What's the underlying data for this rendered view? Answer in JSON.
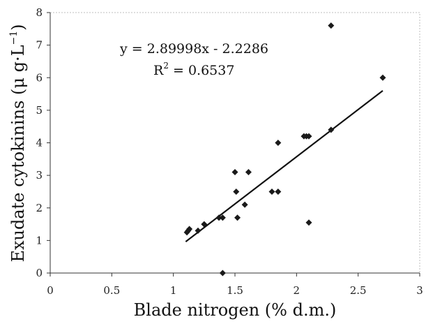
{
  "chart_data": {
    "type": "scatter",
    "xlabel": "Blade nitrogen (% d.m.)",
    "ylabel_main": "Exudate cytokinins (μ g·L",
    "ylabel_sup": "−1",
    "ylabel_close": ")",
    "xlim": [
      0,
      3
    ],
    "ylim": [
      0,
      8
    ],
    "x_ticks": [
      "0",
      "0.5",
      "1",
      "1.5",
      "2",
      "2.5",
      "3"
    ],
    "y_ticks": [
      "0",
      "1",
      "2",
      "3",
      "4",
      "5",
      "6",
      "7",
      "8"
    ],
    "grid": false,
    "points": [
      {
        "x": 1.11,
        "y": 1.25
      },
      {
        "x": 1.12,
        "y": 1.3
      },
      {
        "x": 1.13,
        "y": 1.35
      },
      {
        "x": 1.2,
        "y": 1.3
      },
      {
        "x": 1.25,
        "y": 1.5
      },
      {
        "x": 1.37,
        "y": 1.7
      },
      {
        "x": 1.4,
        "y": 1.7
      },
      {
        "x": 1.4,
        "y": 0.0
      },
      {
        "x": 1.5,
        "y": 3.1
      },
      {
        "x": 1.51,
        "y": 2.5
      },
      {
        "x": 1.52,
        "y": 1.7
      },
      {
        "x": 1.58,
        "y": 2.1
      },
      {
        "x": 1.61,
        "y": 3.1
      },
      {
        "x": 1.8,
        "y": 2.5
      },
      {
        "x": 1.85,
        "y": 2.5
      },
      {
        "x": 1.85,
        "y": 4.0
      },
      {
        "x": 2.06,
        "y": 4.2
      },
      {
        "x": 2.08,
        "y": 4.2
      },
      {
        "x": 2.1,
        "y": 4.2
      },
      {
        "x": 2.1,
        "y": 1.55
      },
      {
        "x": 2.28,
        "y": 4.4
      },
      {
        "x": 2.28,
        "y": 7.6
      },
      {
        "x": 2.7,
        "y": 6.0
      }
    ],
    "trendline": {
      "slope": 2.89998,
      "intercept": -2.2286,
      "x_start": 1.1,
      "x_end": 2.7,
      "equation": "y = 2.89998x - 2.2286",
      "r2_prefix": "R",
      "r2_sup": "2",
      "r2_value": " = 0.6537"
    }
  }
}
